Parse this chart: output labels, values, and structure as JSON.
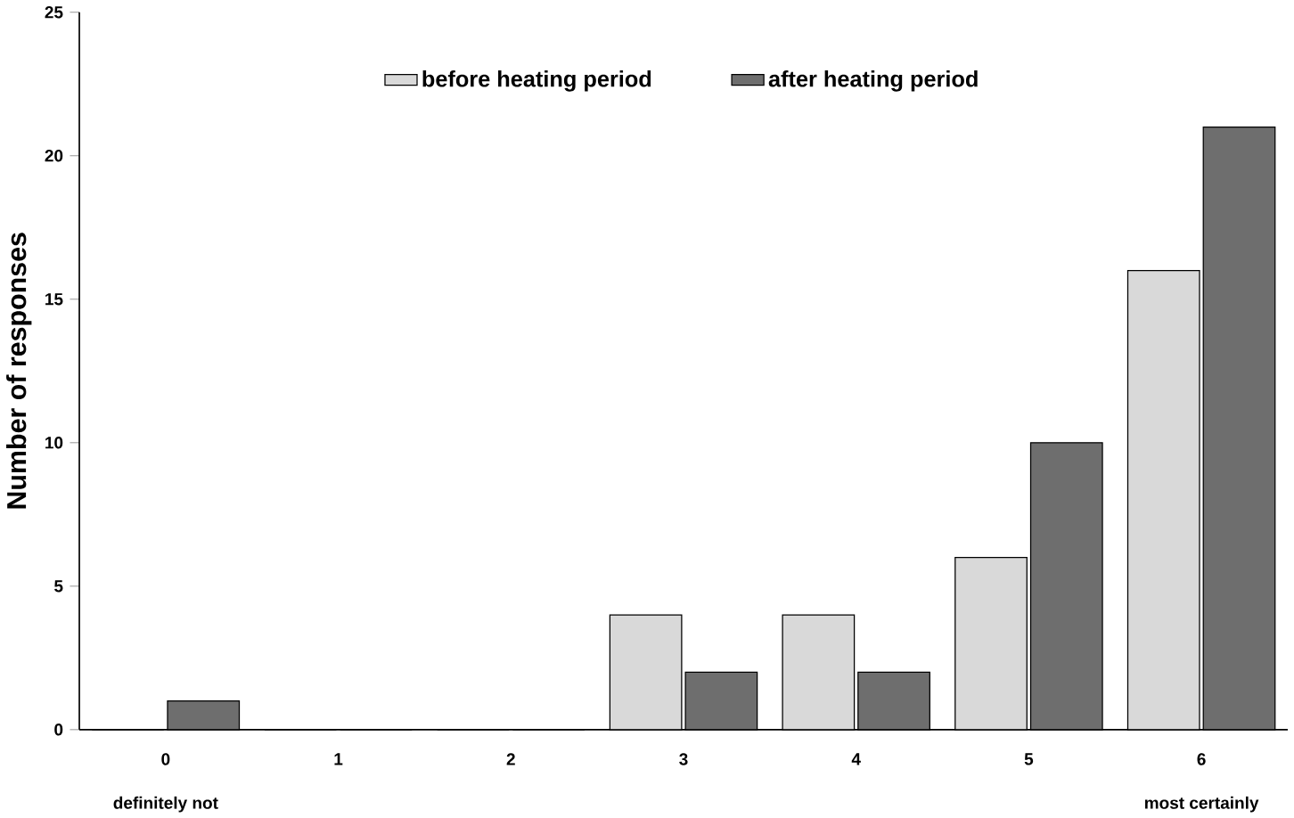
{
  "chart_data": {
    "type": "bar",
    "ylabel": "Number of responses",
    "categories": [
      "0",
      "1",
      "2",
      "3",
      "4",
      "5",
      "6"
    ],
    "series": [
      {
        "name": "before heating period",
        "color": "#d9d9d9",
        "values": [
          0,
          0,
          0,
          4,
          4,
          6,
          16
        ]
      },
      {
        "name": "after heating period",
        "color": "#6e6e6e",
        "values": [
          1,
          0,
          0,
          2,
          2,
          10,
          21
        ]
      }
    ],
    "ylim": [
      0,
      25
    ],
    "yticks": [
      0,
      5,
      10,
      15,
      20,
      25
    ],
    "legend": "top",
    "grid": false,
    "annotations": [
      "definitely not",
      "most certainly"
    ]
  }
}
